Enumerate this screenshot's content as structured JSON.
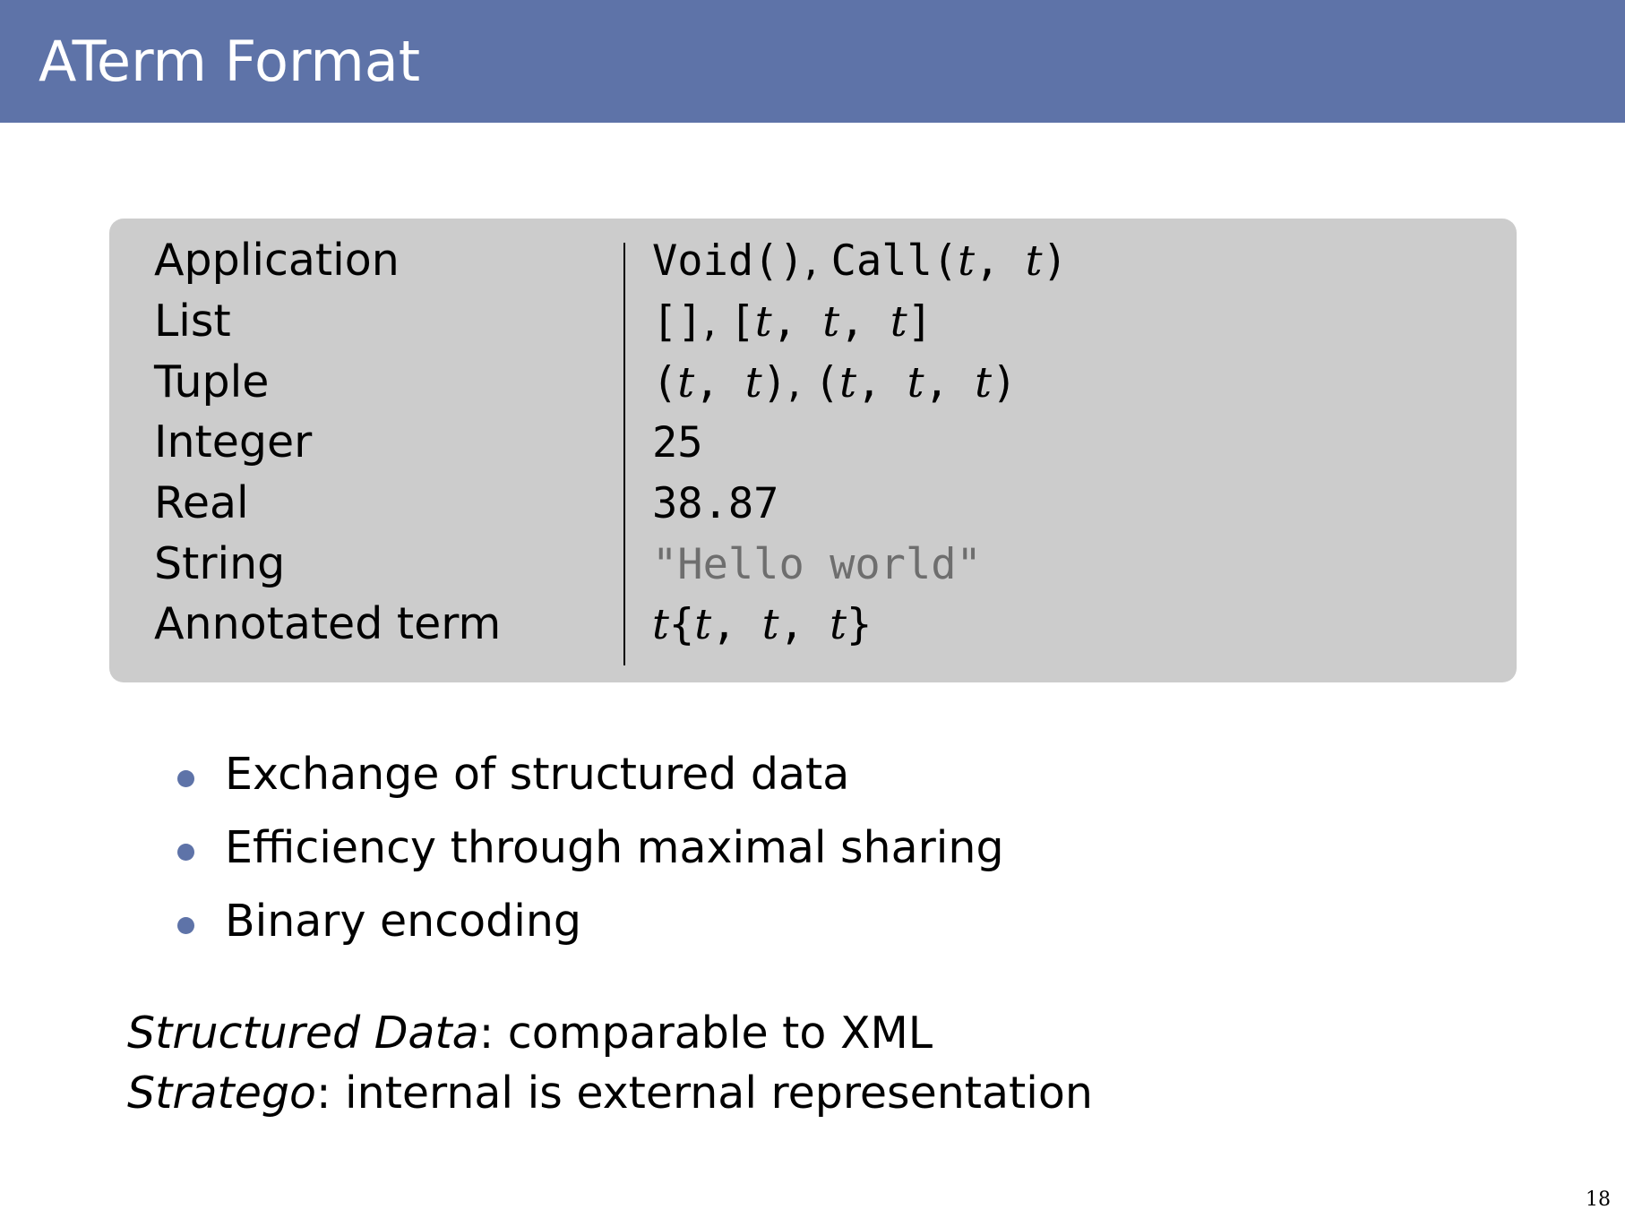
{
  "slide": {
    "title": "ATerm Format",
    "page_number": "18"
  },
  "table": {
    "rows": [
      {
        "label": "Application",
        "value_parts": [
          "Void()",
          ", ",
          "Call(",
          "t",
          ", ",
          "t",
          ")"
        ]
      },
      {
        "label": "List",
        "value_parts": [
          "[]",
          ", ",
          "[",
          "t",
          ", ",
          "t",
          ", ",
          "t",
          "]"
        ]
      },
      {
        "label": "Tuple",
        "value_parts": [
          "(",
          "t",
          ", ",
          "t",
          ")",
          ", ",
          "(",
          "t",
          ", ",
          "t",
          ", ",
          "t",
          ")"
        ]
      },
      {
        "label": "Integer",
        "value": "25"
      },
      {
        "label": "Real",
        "value": "38.87"
      },
      {
        "label": "String",
        "value": "\"Hello world\""
      },
      {
        "label": "Annotated term",
        "value_parts": [
          "t",
          "{",
          "t",
          ", ",
          "t",
          ", ",
          "t",
          "}"
        ]
      }
    ]
  },
  "bullets": [
    "Exchange of structured data",
    "Efficiency through maximal sharing",
    "Binary encoding"
  ],
  "notes": [
    {
      "term": "Structured Data",
      "text": ": comparable to XML"
    },
    {
      "term": "Stratego",
      "text": ": internal is external representation"
    }
  ],
  "colors": {
    "header_bg": "#5e73a8",
    "box_bg": "#cccccc",
    "bullet": "#5e73a8",
    "string_literal": "#6e6e6e"
  }
}
